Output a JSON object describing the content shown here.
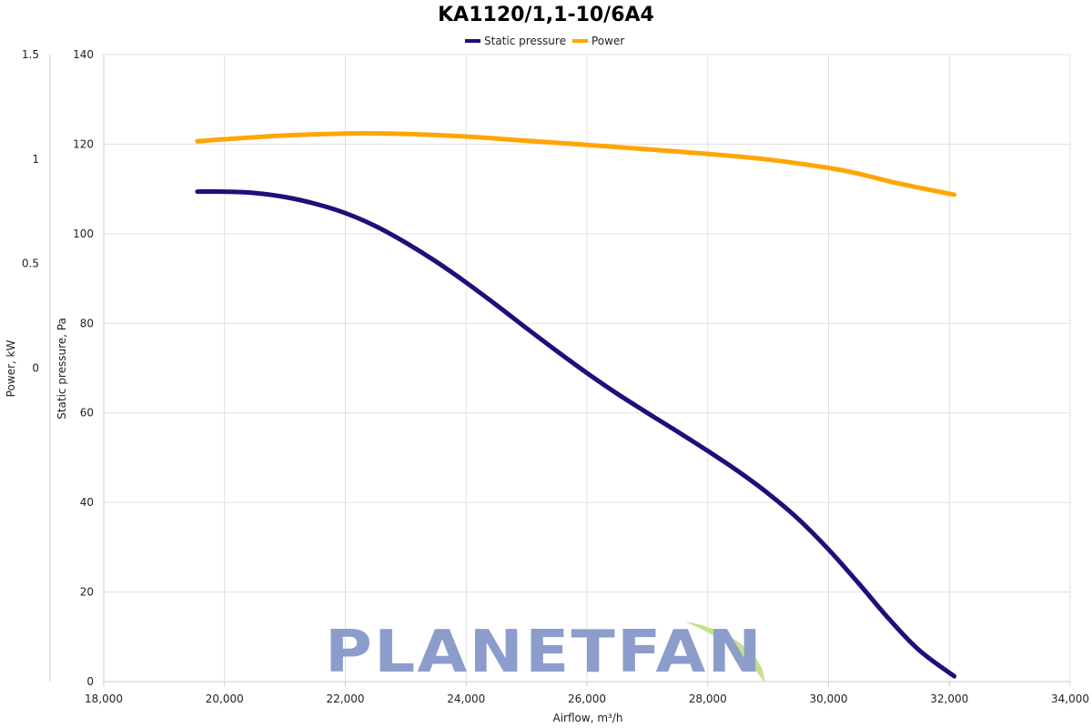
{
  "chart_data": {
    "type": "line",
    "title": "KA1120/1,1-10/6A4",
    "xlabel": "Airflow, m³/h",
    "ylabel_left": "Static pressure, Pa",
    "ylabel_right": "Power, kW",
    "xlim": [
      18000,
      34000
    ],
    "ylim_left": [
      0,
      140
    ],
    "ylim_power": [
      -1.5,
      1.5
    ],
    "x_ticks": [
      "18,000",
      "20,000",
      "22,000",
      "24,000",
      "26,000",
      "28,000",
      "30,000",
      "32,000",
      "34,000"
    ],
    "x_tick_values": [
      18000,
      20000,
      22000,
      24000,
      26000,
      28000,
      30000,
      32000,
      34000
    ],
    "y_ticks_left": [
      "0",
      "20",
      "40",
      "60",
      "80",
      "100",
      "120",
      "140"
    ],
    "y_tick_values_left": [
      0,
      20,
      40,
      60,
      80,
      100,
      120,
      140
    ],
    "y_ticks_power": [
      "0",
      "0.5",
      "1",
      "1.5"
    ],
    "y_tick_values_power": [
      0,
      0.5,
      1,
      1.5
    ],
    "grid": true,
    "legend_position": "top-center",
    "series": [
      {
        "name": "Static pressure",
        "axis": "left",
        "color": "#1e0f7a",
        "x": [
          19550,
          20000,
          20500,
          21000,
          21500,
          22000,
          22500,
          23000,
          23500,
          24000,
          24500,
          25000,
          25500,
          26000,
          26500,
          27000,
          27500,
          28000,
          28500,
          29000,
          29500,
          30000,
          30500,
          31000,
          31500,
          32080
        ],
        "y": [
          109.4,
          109.4,
          109.1,
          108.2,
          106.7,
          104.6,
          101.7,
          98.0,
          93.8,
          89.1,
          84.1,
          78.9,
          73.8,
          68.9,
          64.3,
          60.0,
          55.8,
          51.5,
          47.0,
          42.0,
          36.3,
          29.5,
          21.9,
          14.0,
          7.0,
          1.2
        ]
      },
      {
        "name": "Power",
        "axis": "right",
        "color": "#ffa500",
        "x": [
          19550,
          20000,
          21000,
          22000,
          22500,
          23000,
          24000,
          25000,
          26000,
          27000,
          28000,
          29000,
          30000,
          30500,
          31000,
          31500,
          32080
        ],
        "y": [
          1.085,
          1.095,
          1.113,
          1.122,
          1.123,
          1.12,
          1.108,
          1.088,
          1.068,
          1.047,
          1.025,
          0.998,
          0.958,
          0.93,
          0.894,
          0.863,
          0.83
        ]
      }
    ]
  },
  "watermark": {
    "text": "PLANETFAN",
    "color": "#8c9ccb",
    "accent_color": "#c6e08e"
  }
}
